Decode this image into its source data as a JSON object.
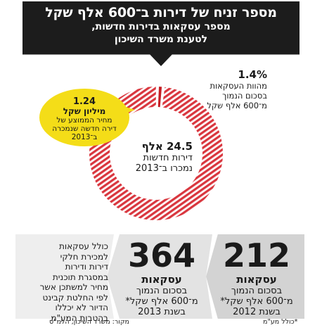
{
  "header": {
    "title": "מספר זניח של דירות ב־600 אלף שקל",
    "subtitle_line1": "מספר עסקאות בדירות חדשות,",
    "subtitle_line2": "לטענת משרד השיכון"
  },
  "callouts": {
    "pct_value": "1.4%",
    "pct_label_line1": "מהוות העסקאות",
    "pct_label_line2": "בסכום הנמוך",
    "pct_label_line3": "מ־600 אלף שקל",
    "bubble_value": "1.24",
    "bubble_unit": "מיליון שקל",
    "bubble_desc_line1": "מחיר הממוצע של",
    "bubble_desc_line2": "דירה חדשה שנמכרה",
    "bubble_desc_line3": "ב־2013",
    "center_value": "24.5 אלף",
    "center_line1": "דירות חדשות",
    "center_line2": "נמכרו ב־2013"
  },
  "stats": [
    {
      "number": "212",
      "title": "עסקאות",
      "line1": "בסכום הנמוך",
      "line2": "מ־600 אלף שקל*",
      "line3": "בשנת 2012"
    },
    {
      "number": "364",
      "title": "עסקאות",
      "line1": "בסכום הנמוך",
      "line2": "מ־600 אלף שקל*",
      "line3": "בשנת 2013"
    }
  ],
  "note": {
    "line1": "כולל עסקאות",
    "line2": "למכירת חלקי",
    "line3": "דירות ודירות",
    "line4": "במסגרת תוכנית",
    "line5": "מחיר למשתכן אשר",
    "line6": "לפי החלטת קבינט",
    "line7": "הדיור לא יכללו",
    "line8": "בהטבות המע\"מ"
  },
  "footer": {
    "source": "מקור: משרד השיכון, הלמ\"ס",
    "footnote": "*כולל מע\"מ"
  },
  "colors": {
    "ring_main": "#d9363e",
    "ring_highlight": "#c41e24",
    "bubble": "#f4dd18",
    "banner": "#1c1c1c"
  },
  "chart_data": {
    "type": "pie",
    "slices": [
      {
        "value": 1.4
      },
      {
        "value": 98.6
      }
    ],
    "total_label": "24.5 אלף"
  }
}
